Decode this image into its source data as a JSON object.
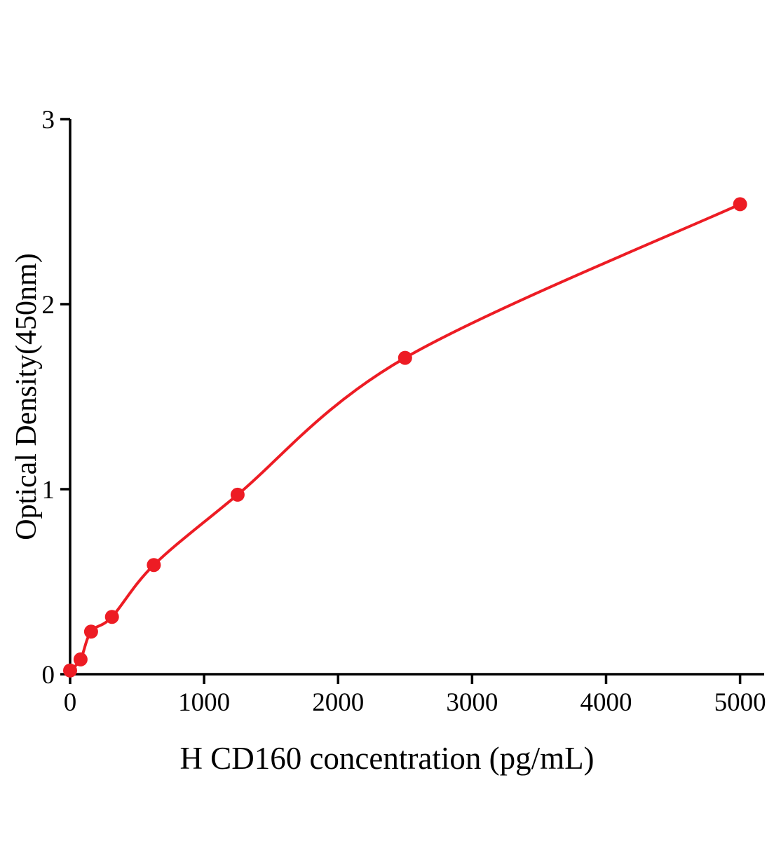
{
  "figure": {
    "background": "#ffffff",
    "xlabel": "H CD160 concentration (pg/mL)",
    "ylabel": "Optical Density(450nm)"
  },
  "chart_data": {
    "type": "scatter",
    "title": "",
    "xlabel": "H CD160 concentration (pg/mL)",
    "ylabel": "Optical Density(450nm)",
    "x": [
      0,
      78.1,
      156.3,
      312.5,
      625,
      1250,
      2500,
      5000
    ],
    "y": [
      0.02,
      0.08,
      0.23,
      0.31,
      0.59,
      0.97,
      1.71,
      2.54
    ],
    "xlim": [
      0,
      5180
    ],
    "ylim": [
      0,
      3
    ],
    "xticks": [
      0,
      1000,
      2000,
      3000,
      4000,
      5000
    ],
    "yticks": [
      0,
      1,
      2,
      3
    ],
    "grid": false,
    "legend": "none",
    "curve": "smooth-fit",
    "point_color": "#ed1c24",
    "line_color": "#ed1c24",
    "axis_color": "#000000"
  }
}
